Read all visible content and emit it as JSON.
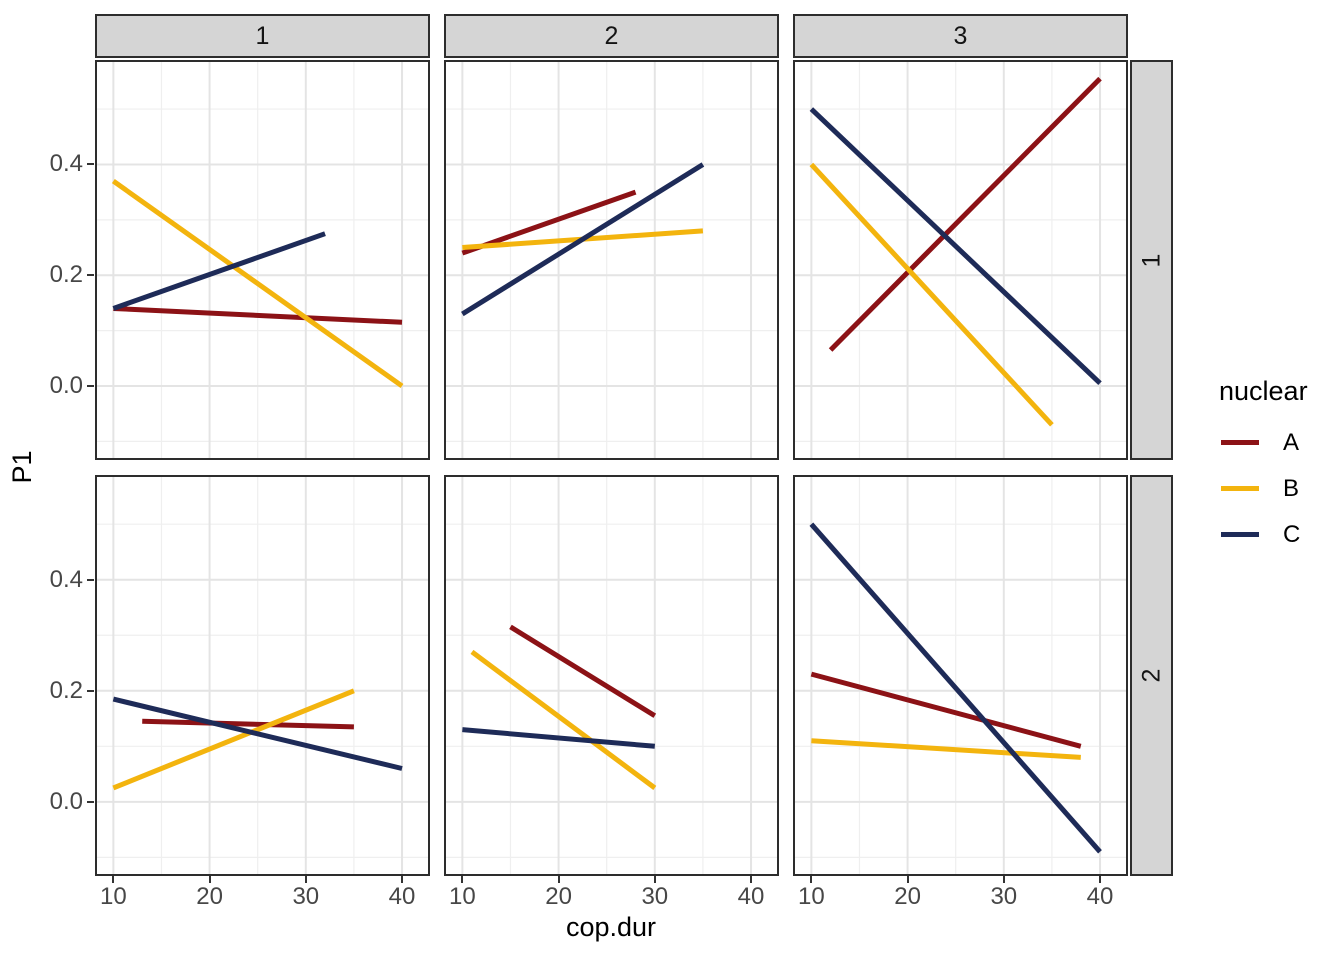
{
  "figure": {
    "y_axis_title": "P1",
    "x_axis_title": "cop.dur",
    "x_tick_labels": [
      "10",
      "20",
      "30",
      "40"
    ],
    "y_tick_labels": [
      "0.0",
      "0.2",
      "0.4"
    ]
  },
  "legend": {
    "title": "nuclear",
    "entries": [
      {
        "label": "A",
        "color": "#8C1216"
      },
      {
        "label": "B",
        "color": "#F3B40E"
      },
      {
        "label": "C",
        "color": "#1E2B58"
      }
    ]
  },
  "style_colors": {
    "strip_fill": "#D5D5D5",
    "panel_border": "#2D2D2D",
    "grid_major": "#E4E4E4",
    "grid_minor": "#EFEFEF",
    "tick_text": "#474747"
  },
  "chart_data": {
    "type": "line",
    "title": "",
    "xlabel": "cop.dur",
    "ylabel": "P1",
    "legend_title": "nuclear",
    "legend_position": "right",
    "grid": true,
    "xlim": [
      8.3,
      42.7
    ],
    "ylim": [
      -0.13,
      0.585
    ],
    "x_major_ticks": [
      10,
      20,
      30,
      40
    ],
    "x_minor_ticks": [
      15,
      25,
      35
    ],
    "y_major_ticks": [
      0.0,
      0.2,
      0.4
    ],
    "y_minor_ticks": [
      -0.1,
      0.1,
      0.3,
      0.5
    ],
    "facet": {
      "col_levels": [
        "1",
        "2",
        "3"
      ],
      "row_levels": [
        "1",
        "2"
      ]
    },
    "series_colors": {
      "A": "#8C1216",
      "B": "#F3B40E",
      "C": "#1E2B58"
    },
    "panels": [
      {
        "col": "1",
        "row": "1",
        "lines": [
          {
            "name": "A",
            "x": [
              10,
              40
            ],
            "y": [
              0.14,
              0.115
            ]
          },
          {
            "name": "B",
            "x": [
              10,
              40
            ],
            "y": [
              0.37,
              0.0
            ]
          },
          {
            "name": "C",
            "x": [
              10,
              32
            ],
            "y": [
              0.14,
              0.275
            ]
          }
        ]
      },
      {
        "col": "2",
        "row": "1",
        "lines": [
          {
            "name": "A",
            "x": [
              10,
              28
            ],
            "y": [
              0.24,
              0.35
            ]
          },
          {
            "name": "B",
            "x": [
              10,
              35
            ],
            "y": [
              0.25,
              0.28
            ]
          },
          {
            "name": "C",
            "x": [
              10,
              35
            ],
            "y": [
              0.13,
              0.4
            ]
          }
        ]
      },
      {
        "col": "3",
        "row": "1",
        "lines": [
          {
            "name": "A",
            "x": [
              12,
              40
            ],
            "y": [
              0.065,
              0.555
            ]
          },
          {
            "name": "B",
            "x": [
              10,
              35
            ],
            "y": [
              0.4,
              -0.07
            ]
          },
          {
            "name": "C",
            "x": [
              10,
              40
            ],
            "y": [
              0.5,
              0.005
            ]
          }
        ]
      },
      {
        "col": "1",
        "row": "2",
        "lines": [
          {
            "name": "A",
            "x": [
              13,
              35
            ],
            "y": [
              0.145,
              0.135
            ]
          },
          {
            "name": "B",
            "x": [
              10,
              35
            ],
            "y": [
              0.025,
              0.2
            ]
          },
          {
            "name": "C",
            "x": [
              10,
              40
            ],
            "y": [
              0.185,
              0.06
            ]
          }
        ]
      },
      {
        "col": "2",
        "row": "2",
        "lines": [
          {
            "name": "A",
            "x": [
              15,
              30
            ],
            "y": [
              0.315,
              0.155
            ]
          },
          {
            "name": "B",
            "x": [
              11,
              30
            ],
            "y": [
              0.27,
              0.025
            ]
          },
          {
            "name": "C",
            "x": [
              10,
              30
            ],
            "y": [
              0.13,
              0.1
            ]
          }
        ]
      },
      {
        "col": "3",
        "row": "2",
        "lines": [
          {
            "name": "A",
            "x": [
              10,
              38
            ],
            "y": [
              0.23,
              0.1
            ]
          },
          {
            "name": "B",
            "x": [
              10,
              38
            ],
            "y": [
              0.11,
              0.08
            ]
          },
          {
            "name": "C",
            "x": [
              10,
              40
            ],
            "y": [
              0.5,
              -0.09
            ]
          }
        ]
      }
    ]
  }
}
